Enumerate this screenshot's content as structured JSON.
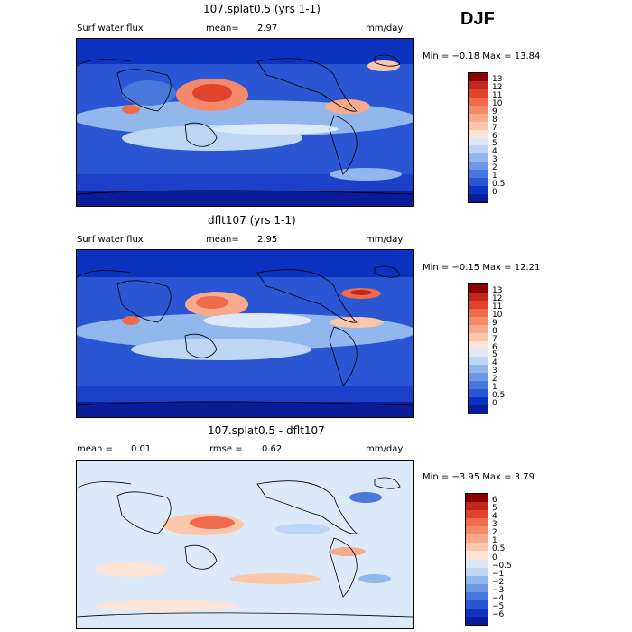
{
  "season": "DJF",
  "panels": [
    {
      "title": "107.splat0.5 (yrs 1-1)",
      "left_label": "Surf water flux",
      "stat1_label": "mean=",
      "stat1_value": "2.97",
      "units": "mm/day",
      "minmax": "Min = −0.18 Max = 13.84",
      "colorbar": {
        "labels": [
          "13",
          "12",
          "11",
          "10",
          "9",
          "8",
          "7",
          "6",
          "5",
          "4",
          "3",
          "2",
          "1",
          "0.5",
          "0"
        ],
        "colors": [
          "#8b0000",
          "#c0281f",
          "#e0442c",
          "#ee6c4c",
          "#f48a6b",
          "#f8aa8c",
          "#fbc7ab",
          "#fde4d6",
          "#dbe9f8",
          "#bcd6f3",
          "#92b7ec",
          "#6e97e4",
          "#4a77dc",
          "#2a56d4",
          "#0c33c0",
          "#0a1c96"
        ]
      }
    },
    {
      "title": "dflt107 (yrs 1-1)",
      "left_label": "Surf water flux",
      "stat1_label": "mean=",
      "stat1_value": "2.95",
      "units": "mm/day",
      "minmax": "Min = −0.15 Max = 12.21",
      "colorbar": {
        "labels": [
          "13",
          "12",
          "11",
          "10",
          "9",
          "8",
          "7",
          "6",
          "5",
          "4",
          "3",
          "2",
          "1",
          "0.5",
          "0"
        ],
        "colors": [
          "#8b0000",
          "#c0281f",
          "#e0442c",
          "#ee6c4c",
          "#f48a6b",
          "#f8aa8c",
          "#fbc7ab",
          "#fde4d6",
          "#dbe9f8",
          "#bcd6f3",
          "#92b7ec",
          "#6e97e4",
          "#4a77dc",
          "#2a56d4",
          "#0c33c0",
          "#0a1c96"
        ]
      }
    },
    {
      "title": "107.splat0.5 - dflt107",
      "stat1_label": "mean =",
      "stat1_value": "0.01",
      "stat2_label": "rmse =",
      "stat2_value": "0.62",
      "units": "mm/day",
      "minmax": "Min = −3.95 Max = 3.79",
      "colorbar": {
        "labels": [
          "6",
          "5",
          "4",
          "3",
          "2",
          "1",
          "0.5",
          "0",
          "−0.5",
          "−1",
          "−2",
          "−3",
          "−4",
          "−5",
          "−6"
        ],
        "colors": [
          "#8b0000",
          "#c0281f",
          "#e0442c",
          "#ee6c4c",
          "#f48a6b",
          "#f8aa8c",
          "#fbc7ab",
          "#fde4d6",
          "#dbe9f8",
          "#bcd6f3",
          "#92b7ec",
          "#6e97e4",
          "#4a77dc",
          "#2a56d4",
          "#0c33c0",
          "#0a1c96"
        ]
      }
    }
  ],
  "chart_data": [
    {
      "type": "heatmap",
      "title": "107.splat0.5 (yrs 1-1)",
      "variable": "Surf water flux",
      "units": "mm/day",
      "mean": 2.97,
      "min": -0.18,
      "max": 13.84,
      "levels": [
        0,
        0.5,
        1,
        2,
        3,
        4,
        5,
        6,
        7,
        8,
        9,
        10,
        11,
        12,
        13
      ]
    },
    {
      "type": "heatmap",
      "title": "dflt107 (yrs 1-1)",
      "variable": "Surf water flux",
      "units": "mm/day",
      "mean": 2.95,
      "min": -0.15,
      "max": 12.21,
      "levels": [
        0,
        0.5,
        1,
        2,
        3,
        4,
        5,
        6,
        7,
        8,
        9,
        10,
        11,
        12,
        13
      ]
    },
    {
      "type": "heatmap",
      "title": "107.splat0.5 - dflt107",
      "units": "mm/day",
      "mean": 0.01,
      "rmse": 0.62,
      "min": -3.95,
      "max": 3.79,
      "levels": [
        -6,
        -5,
        -4,
        -3,
        -2,
        -1,
        -0.5,
        0,
        0.5,
        1,
        2,
        3,
        4,
        5,
        6
      ]
    }
  ]
}
